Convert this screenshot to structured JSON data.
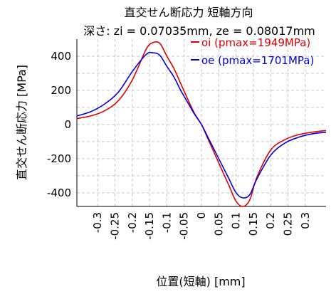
{
  "chart_data": {
    "type": "line",
    "title": "直交せん断応力 短軸方向",
    "subtitle": "深さ: zi = 0.07035mm, ze = 0.08017mm",
    "xlabel": "位置(短軸) [mm]",
    "ylabel": "直交せん断応力 [MPa]",
    "xlim": [
      -0.36,
      0.36
    ],
    "ylim": [
      -480,
      500
    ],
    "grid": true,
    "legend_position": "top-right",
    "x_ticks": [
      "-0.3",
      "-0.25",
      "-0.2",
      "-0.15",
      "-0.1",
      "-0.05",
      "0",
      "0.05",
      "0.1",
      "0.15",
      "0.2",
      "0.25",
      "0.3"
    ],
    "y_ticks": [
      "-400",
      "-200",
      "0",
      "200",
      "400"
    ],
    "series": [
      {
        "name": "oi (pmax=1949MPa)",
        "color": "#e00000",
        "x": [
          -0.36,
          -0.32,
          -0.28,
          -0.24,
          -0.2,
          -0.16,
          -0.14,
          -0.12,
          -0.1,
          -0.08,
          -0.06,
          -0.04,
          -0.02,
          0,
          0.02,
          0.04,
          0.06,
          0.08,
          0.1,
          0.12,
          0.14,
          0.16,
          0.2,
          0.24,
          0.28,
          0.32,
          0.36
        ],
        "values": [
          35,
          50,
          80,
          140,
          260,
          440,
          480,
          475,
          400,
          330,
          240,
          150,
          65,
          0,
          -90,
          -180,
          -270,
          -360,
          -450,
          -480,
          -440,
          -310,
          -150,
          -90,
          -60,
          -45,
          -35
        ]
      },
      {
        "name": "oe (pmax=1701MPa)",
        "color": "#0000e0",
        "x": [
          -0.36,
          -0.32,
          -0.28,
          -0.24,
          -0.2,
          -0.16,
          -0.14,
          -0.12,
          -0.1,
          -0.08,
          -0.06,
          -0.04,
          -0.02,
          0,
          0.02,
          0.04,
          0.06,
          0.08,
          0.1,
          0.12,
          0.14,
          0.16,
          0.2,
          0.24,
          0.28,
          0.32,
          0.36
        ],
        "values": [
          50,
          75,
          120,
          190,
          310,
          410,
          420,
          405,
          340,
          280,
          200,
          130,
          60,
          0,
          -80,
          -160,
          -240,
          -320,
          -400,
          -430,
          -410,
          -320,
          -180,
          -110,
          -75,
          -55,
          -45
        ]
      }
    ]
  }
}
